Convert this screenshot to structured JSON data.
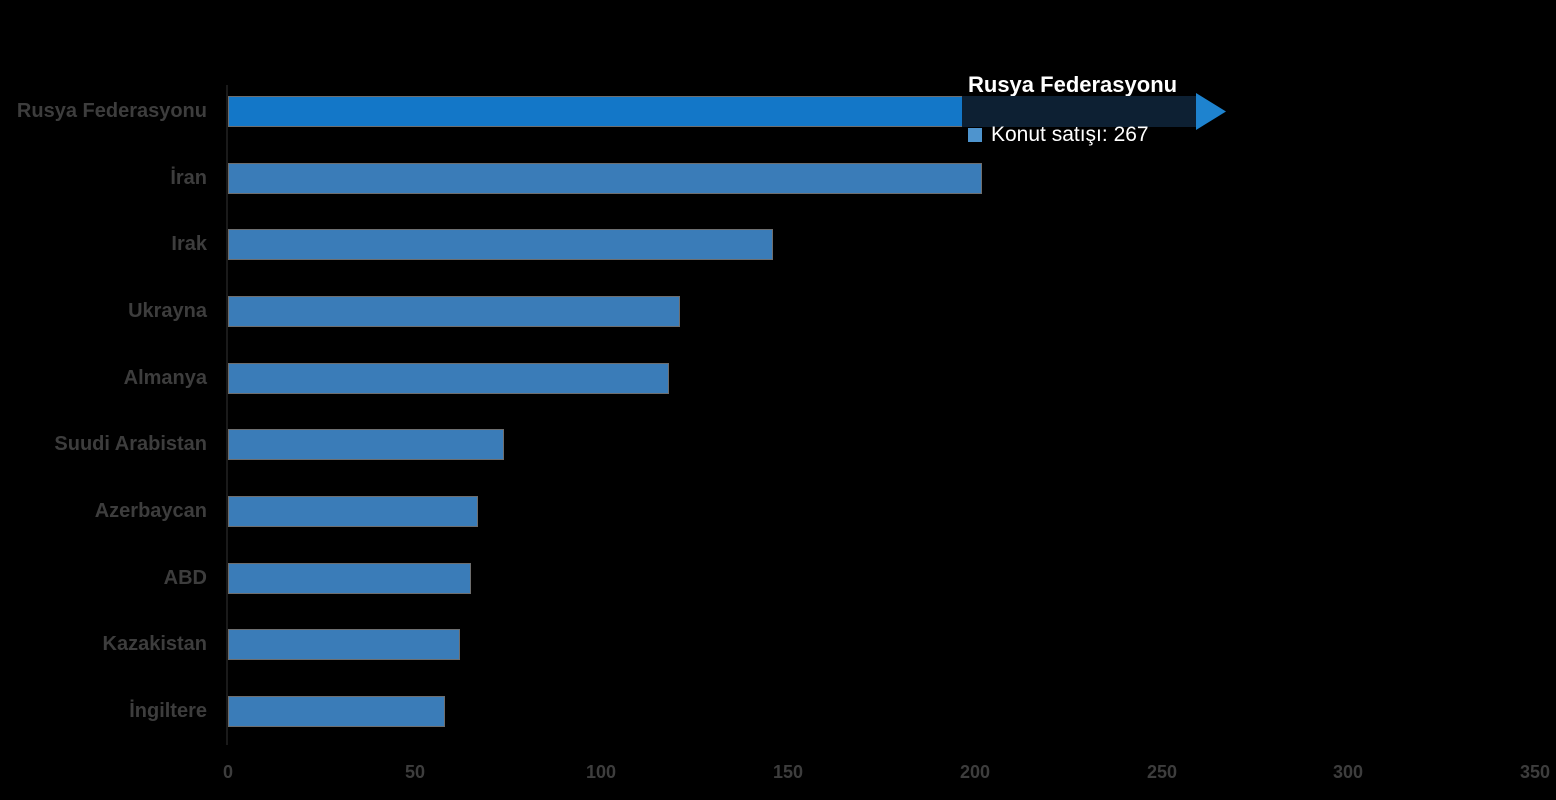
{
  "chart_data": {
    "type": "bar",
    "orientation": "horizontal",
    "title": "",
    "xlabel": "",
    "ylabel": "",
    "series_name": "Konut satışı",
    "categories": [
      "Rusya Federasyonu",
      "İran",
      "Irak",
      "Ukrayna",
      "Almanya",
      "Suudi Arabistan",
      "Azerbaycan",
      "ABD",
      "Kazakistan",
      "İngiltere"
    ],
    "values": [
      267,
      202,
      146,
      121,
      118,
      74,
      67,
      65,
      62,
      58
    ],
    "xlim": [
      0,
      350
    ],
    "x_ticks": [
      "0",
      "50",
      "100",
      "150",
      "200",
      "250",
      "300",
      "350"
    ],
    "grid": false,
    "highlighted_index": 0,
    "legend_position": "tooltip"
  },
  "tooltip": {
    "title": "Rusya Federasyonu",
    "series_label": "Konut satışı",
    "value": "267",
    "text": "Konut satışı: 267"
  },
  "colors": {
    "background": "#000000",
    "bar": "#3a7cb8",
    "bar_highlight": "#1377c8",
    "bar_border": "#6e6e6e",
    "tooltip_band": "#0d2033",
    "tooltip_arrow": "#1e83cf",
    "legend_square": "#4e94ce",
    "axis_text": "#3d3d3d",
    "tooltip_text": "#ffffff"
  }
}
